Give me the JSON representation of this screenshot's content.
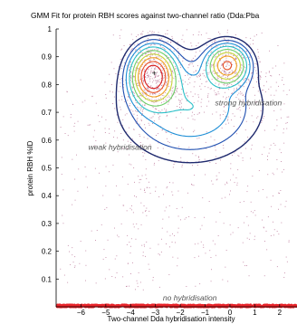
{
  "chart_data": {
    "type": "scatter",
    "title": "GMM Fit for protein RBH scores against two-channel ratio (Dda:Pba",
    "xlabel": "Two-channel Dda hybridisation intensity",
    "ylabel": "protein RBH %ID",
    "xlim": [
      -7,
      2.7
    ],
    "ylim": [
      0,
      1
    ],
    "xticks": [
      -6,
      -5,
      -4,
      -3,
      -2,
      -1,
      0,
      1,
      2
    ],
    "xtick_labels": [
      "−6",
      "−5",
      "−4",
      "−3",
      "−2",
      "−1",
      "0",
      "1",
      "2"
    ],
    "yticks": [
      0.1,
      0.2,
      0.3,
      0.4,
      0.5,
      0.6,
      0.7,
      0.8,
      0.9,
      1
    ],
    "ytick_labels": [
      "0.1",
      "0.2",
      "0.3",
      "0.4",
      "0.5",
      "0.6",
      "0.7",
      "0.8",
      "0.9",
      "1"
    ],
    "grid": false,
    "annotations": [
      {
        "text": "strong hybridisation",
        "x": -0.6,
        "y": 0.725
      },
      {
        "text": "weak hybridisation",
        "x": -5.7,
        "y": 0.565
      },
      {
        "text": "no hybridisation",
        "x": -2.7,
        "y": 0.022
      }
    ],
    "gmm_components": [
      {
        "name": "weak hybridisation",
        "mean": [
          -3.1,
          0.83
        ],
        "sd": [
          0.48,
          0.055
        ],
        "weight": 0.45
      },
      {
        "name": "strong hybridisation",
        "mean": [
          -0.1,
          0.87
        ],
        "sd": [
          0.45,
          0.04
        ],
        "weight": 0.3
      },
      {
        "name": "no hybridisation",
        "mean": [
          -2.0,
          0.0
        ],
        "sd": [
          2.2,
          0.004
        ],
        "weight": 0.25
      }
    ],
    "centroid_markers": [
      {
        "x": -3.05,
        "y": 0.84
      }
    ],
    "colors": {
      "points": "#c080a0",
      "baseline_points": "#e8242a",
      "contours": [
        "#1f2a6e",
        "#1f4fb0",
        "#1f8fd6",
        "#2bc0c8",
        "#6fcf6a",
        "#c8d43a",
        "#f0a020",
        "#e8532a",
        "#d81e1e"
      ]
    }
  }
}
